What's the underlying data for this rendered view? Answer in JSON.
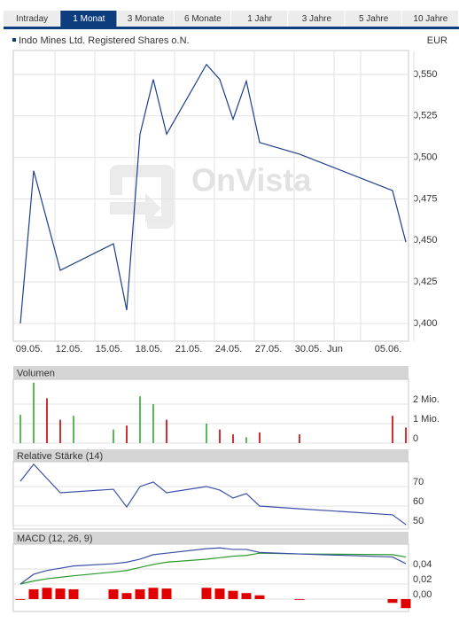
{
  "tabs": [
    "Intraday",
    "1 Monat",
    "3 Monate",
    "6 Monate",
    "1 Jahr",
    "3 Jahre",
    "5 Jahre",
    "10 Jahre"
  ],
  "active_tab": 1,
  "chart_data": [
    {
      "type": "line",
      "title": "Indo Mines Ltd. Registered Shares o.N.",
      "currency": "EUR",
      "watermark": "OnVista",
      "x": [
        "09.05.",
        "10.05.",
        "12.05.",
        "16.05.",
        "17.05.",
        "18.05.",
        "19.05.",
        "20.05.",
        "23.05.",
        "24.05.",
        "25.05.",
        "26.05.",
        "27.05.",
        "30.05.",
        "06.06.",
        "07.06."
      ],
      "values": [
        0.4,
        0.492,
        0.432,
        0.448,
        0.408,
        0.514,
        0.547,
        0.514,
        0.556,
        0.547,
        0.523,
        0.546,
        0.509,
        0.502,
        0.48,
        0.449
      ],
      "color": "#1b3f8b",
      "grid": true,
      "ylim": [
        0.3893,
        0.5644
      ],
      "yticks": [
        {
          "value": 0.4,
          "label": "0,400"
        },
        {
          "value": 0.425,
          "label": "0,425"
        },
        {
          "value": 0.45,
          "label": "0,450"
        },
        {
          "value": 0.475,
          "label": "0,475"
        },
        {
          "value": 0.5,
          "label": "0,500"
        },
        {
          "value": 0.525,
          "label": "0,525"
        },
        {
          "value": 0.55,
          "label": "0,550"
        }
      ],
      "xticks": [
        "09.05.",
        "12.05.",
        "15.05.",
        "18.05.",
        "21.05.",
        "24.05.",
        "27.05.",
        "30.05.",
        {
          "value": "01.06.",
          "label": "Jun"
        },
        "05.06."
      ]
    },
    {
      "type": "bar",
      "title": "Volumen",
      "x": [
        "09.05.",
        "10.05.",
        "11.05.",
        "12.05.",
        "13.05.",
        "16.05.",
        "17.05.",
        "18.05.",
        "19.05.",
        "20.05.",
        "23.05.",
        "24.05.",
        "25.05.",
        "26.05.",
        "27.05.",
        "30.05.",
        "06.06.",
        "07.06."
      ],
      "values": [
        1450000,
        3100000,
        2300000,
        1200000,
        1400000,
        700000,
        900000,
        2400000,
        2000000,
        1200000,
        1000000,
        700000,
        450000,
        300000,
        550000,
        450000,
        1400000,
        800000
      ],
      "colors": [
        "#2eaa2e",
        "#2eaa2e",
        "#c00000",
        "#c00000",
        "#2eaa2e",
        "#2eaa2e",
        "#c00000",
        "#2eaa2e",
        "#2eaa2e",
        "#c00000",
        "#2eaa2e",
        "#c00000",
        "#c00000",
        "#2eaa2e",
        "#c00000",
        "#c00000",
        "#c00000",
        "#c00000"
      ],
      "ylim": [
        0,
        3270000
      ],
      "yticks": [
        0,
        {
          "value": 1000000,
          "label": "1 Mio."
        },
        {
          "value": 2000000,
          "label": "2 Mio."
        }
      ]
    },
    {
      "type": "line",
      "title": "Relative Stärke (14)",
      "x": [
        "09.05.",
        "10.05.",
        "12.05.",
        "16.05.",
        "17.05.",
        "18.05.",
        "19.05.",
        "20.05.",
        "23.05.",
        "24.05.",
        "25.05.",
        "26.05.",
        "27.05.",
        "30.05.",
        "06.06.",
        "07.06."
      ],
      "values": [
        72.7,
        81.4,
        66.8,
        68.6,
        59.5,
        70,
        72.3,
        66.8,
        70,
        68.2,
        64.1,
        66.4,
        60,
        58.6,
        55.5,
        50.5
      ],
      "color": "#3b4fa8",
      "ylim": [
        48.2,
        82.7
      ],
      "yticks": [
        50,
        60,
        70
      ]
    },
    {
      "type": "macd",
      "title": "MACD (12, 26, 9)",
      "x": [
        "09.05.",
        "10.05.",
        "11.05.",
        "12.05.",
        "13.05.",
        "16.05.",
        "17.05.",
        "18.05.",
        "19.05.",
        "20.05.",
        "23.05.",
        "24.05.",
        "25.05.",
        "26.05.",
        "27.05.",
        "30.05.",
        "06.06.",
        "07.06."
      ],
      "series": [
        {
          "type": "bar",
          "color": "#e00000",
          "values": [
            -0.001,
            0.013,
            0.015,
            0.014,
            0.013,
            0.013,
            0.008,
            0.013,
            0.015,
            0.014,
            0.015,
            0.014,
            0.011,
            0.008,
            0.005,
            -0.001,
            -0.005,
            -0.012
          ]
        },
        {
          "type": "line",
          "color": "#2a9a2a",
          "values": [
            0.02,
            0.024,
            0.027,
            0.029,
            0.031,
            0.036,
            0.038,
            0.042,
            0.046,
            0.049,
            0.053,
            0.055,
            0.057,
            0.058,
            0.061,
            0.06,
            0.059,
            0.056
          ]
        },
        {
          "type": "line",
          "color": "#3b4fa8",
          "values": [
            0.02,
            0.033,
            0.038,
            0.041,
            0.044,
            0.047,
            0.049,
            0.053,
            0.059,
            0.061,
            0.067,
            0.068,
            0.066,
            0.066,
            0.062,
            0.06,
            0.056,
            0.047
          ]
        }
      ],
      "ylim": [
        -0.0165,
        0.073
      ],
      "yticks": [
        {
          "value": 0,
          "label": "0,00"
        },
        {
          "value": 0.02,
          "label": "0,02"
        },
        {
          "value": 0.04,
          "label": "0,04"
        }
      ]
    }
  ]
}
